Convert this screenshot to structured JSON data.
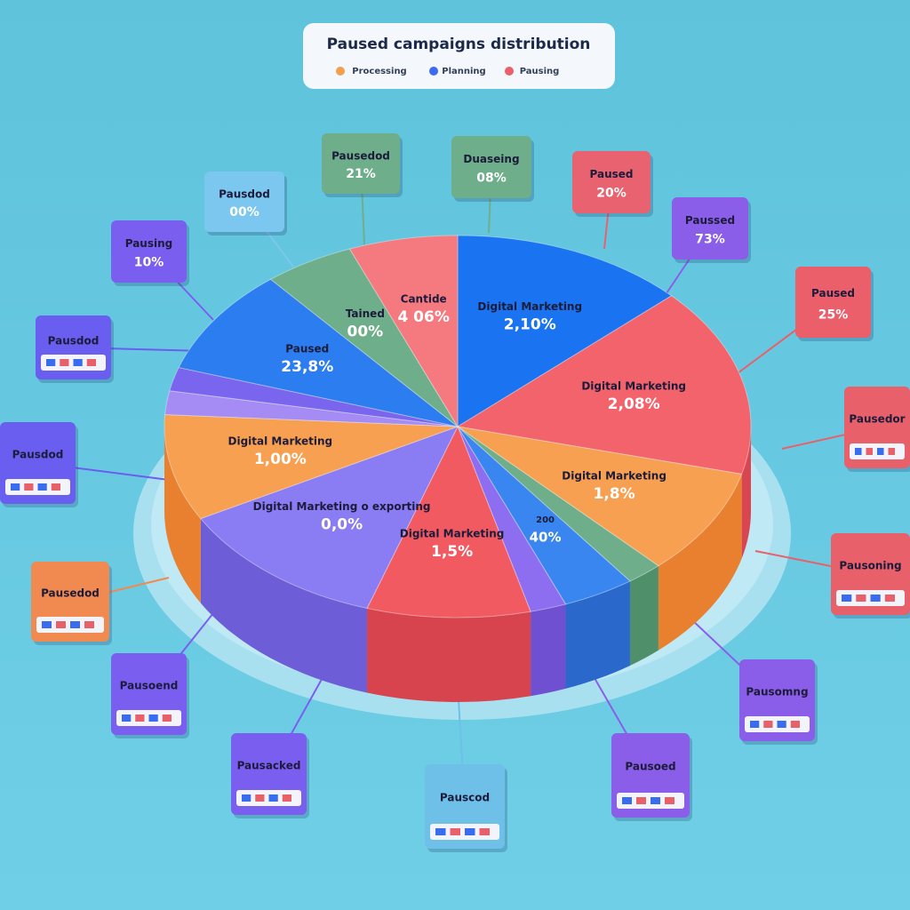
{
  "title": "Paused campaigns distribution",
  "legend": [
    "Processing",
    "Planning",
    "Pausing"
  ],
  "slices": [
    {
      "label": "Digital Marketing",
      "value": "2,10%"
    },
    {
      "label": "Digital Marketing",
      "value": "2,08%"
    },
    {
      "label": "Digital Marketing",
      "value": "1,8%"
    },
    {
      "label": "200",
      "value": "40%"
    },
    {
      "label": "Digital Marketing",
      "value": "1,5%"
    },
    {
      "label": "Digital Marketing o exporting",
      "value": "0,0%"
    },
    {
      "label": "Digital Marketing",
      "value": "1,00%"
    },
    {
      "label": "Paused",
      "value": "23,8%"
    },
    {
      "label": "Tained",
      "value": "00%"
    },
    {
      "label": "Cantide",
      "value": "4 06%"
    }
  ],
  "callouts": [
    {
      "title": "Pausedod",
      "value": "21%"
    },
    {
      "title": "Duaseing",
      "value": "08%"
    },
    {
      "title": "Paused",
      "value": "20%"
    },
    {
      "title": "Paussed",
      "value": "73%"
    },
    {
      "title": "Paused",
      "value": "25%"
    },
    {
      "title": "Pausdod",
      "value": "00%"
    },
    {
      "title": "Pausing",
      "value": "10%"
    },
    {
      "title": "Pausdod"
    },
    {
      "title": "Pausdod"
    },
    {
      "title": "Pausedod"
    },
    {
      "title": "Pausoend"
    },
    {
      "title": "Pausacked"
    },
    {
      "title": "Pauscod"
    },
    {
      "title": "Pausoed"
    },
    {
      "title": "Pausomng"
    },
    {
      "title": "Pausedor"
    },
    {
      "title": "Pausoning"
    }
  ]
}
